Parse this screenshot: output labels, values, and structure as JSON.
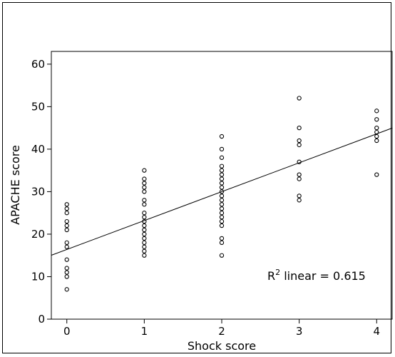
{
  "chart_data": {
    "type": "scatter",
    "title": "",
    "xlabel": "Shock score",
    "ylabel": "APACHE score",
    "xlim": [
      -0.2,
      4.2
    ],
    "ylim": [
      0,
      63
    ],
    "x_ticks": [
      0,
      1,
      2,
      3,
      4
    ],
    "y_ticks": [
      0,
      10,
      20,
      30,
      40,
      50,
      60
    ],
    "grid": false,
    "legend": "none",
    "marker": "open-circle",
    "points": [
      {
        "x": 0,
        "y": 7
      },
      {
        "x": 0,
        "y": 10
      },
      {
        "x": 0,
        "y": 11
      },
      {
        "x": 0,
        "y": 12
      },
      {
        "x": 0,
        "y": 14
      },
      {
        "x": 0,
        "y": 17
      },
      {
        "x": 0,
        "y": 18
      },
      {
        "x": 0,
        "y": 21
      },
      {
        "x": 0,
        "y": 22
      },
      {
        "x": 0,
        "y": 23
      },
      {
        "x": 0,
        "y": 25
      },
      {
        "x": 0,
        "y": 26
      },
      {
        "x": 0,
        "y": 27
      },
      {
        "x": 1,
        "y": 15
      },
      {
        "x": 1,
        "y": 16
      },
      {
        "x": 1,
        "y": 17
      },
      {
        "x": 1,
        "y": 18
      },
      {
        "x": 1,
        "y": 19
      },
      {
        "x": 1,
        "y": 20
      },
      {
        "x": 1,
        "y": 21
      },
      {
        "x": 1,
        "y": 22
      },
      {
        "x": 1,
        "y": 23
      },
      {
        "x": 1,
        "y": 24
      },
      {
        "x": 1,
        "y": 25
      },
      {
        "x": 1,
        "y": 27
      },
      {
        "x": 1,
        "y": 28
      },
      {
        "x": 1,
        "y": 30
      },
      {
        "x": 1,
        "y": 31
      },
      {
        "x": 1,
        "y": 32
      },
      {
        "x": 1,
        "y": 33
      },
      {
        "x": 1,
        "y": 35
      },
      {
        "x": 2,
        "y": 15
      },
      {
        "x": 2,
        "y": 18
      },
      {
        "x": 2,
        "y": 19
      },
      {
        "x": 2,
        "y": 22
      },
      {
        "x": 2,
        "y": 23
      },
      {
        "x": 2,
        "y": 24
      },
      {
        "x": 2,
        "y": 25
      },
      {
        "x": 2,
        "y": 26
      },
      {
        "x": 2,
        "y": 27
      },
      {
        "x": 2,
        "y": 28
      },
      {
        "x": 2,
        "y": 29
      },
      {
        "x": 2,
        "y": 30
      },
      {
        "x": 2,
        "y": 31
      },
      {
        "x": 2,
        "y": 32
      },
      {
        "x": 2,
        "y": 33
      },
      {
        "x": 2,
        "y": 34
      },
      {
        "x": 2,
        "y": 35
      },
      {
        "x": 2,
        "y": 36
      },
      {
        "x": 2,
        "y": 38
      },
      {
        "x": 2,
        "y": 40
      },
      {
        "x": 2,
        "y": 43
      },
      {
        "x": 3,
        "y": 28
      },
      {
        "x": 3,
        "y": 29
      },
      {
        "x": 3,
        "y": 33
      },
      {
        "x": 3,
        "y": 34
      },
      {
        "x": 3,
        "y": 37
      },
      {
        "x": 3,
        "y": 41
      },
      {
        "x": 3,
        "y": 42
      },
      {
        "x": 3,
        "y": 45
      },
      {
        "x": 3,
        "y": 52
      },
      {
        "x": 4,
        "y": 34
      },
      {
        "x": 4,
        "y": 42
      },
      {
        "x": 4,
        "y": 43
      },
      {
        "x": 4,
        "y": 44
      },
      {
        "x": 4,
        "y": 45
      },
      {
        "x": 4,
        "y": 47
      },
      {
        "x": 4,
        "y": 49
      }
    ],
    "fit_line": {
      "type": "linear",
      "intercept": 16.4,
      "slope": 6.8
    },
    "annotation": {
      "prefix": "R",
      "superscript": "2",
      "suffix": " linear = 0.615"
    },
    "colors": {
      "line": "#000000",
      "marker": "#000000",
      "background": "#ffffff"
    }
  }
}
